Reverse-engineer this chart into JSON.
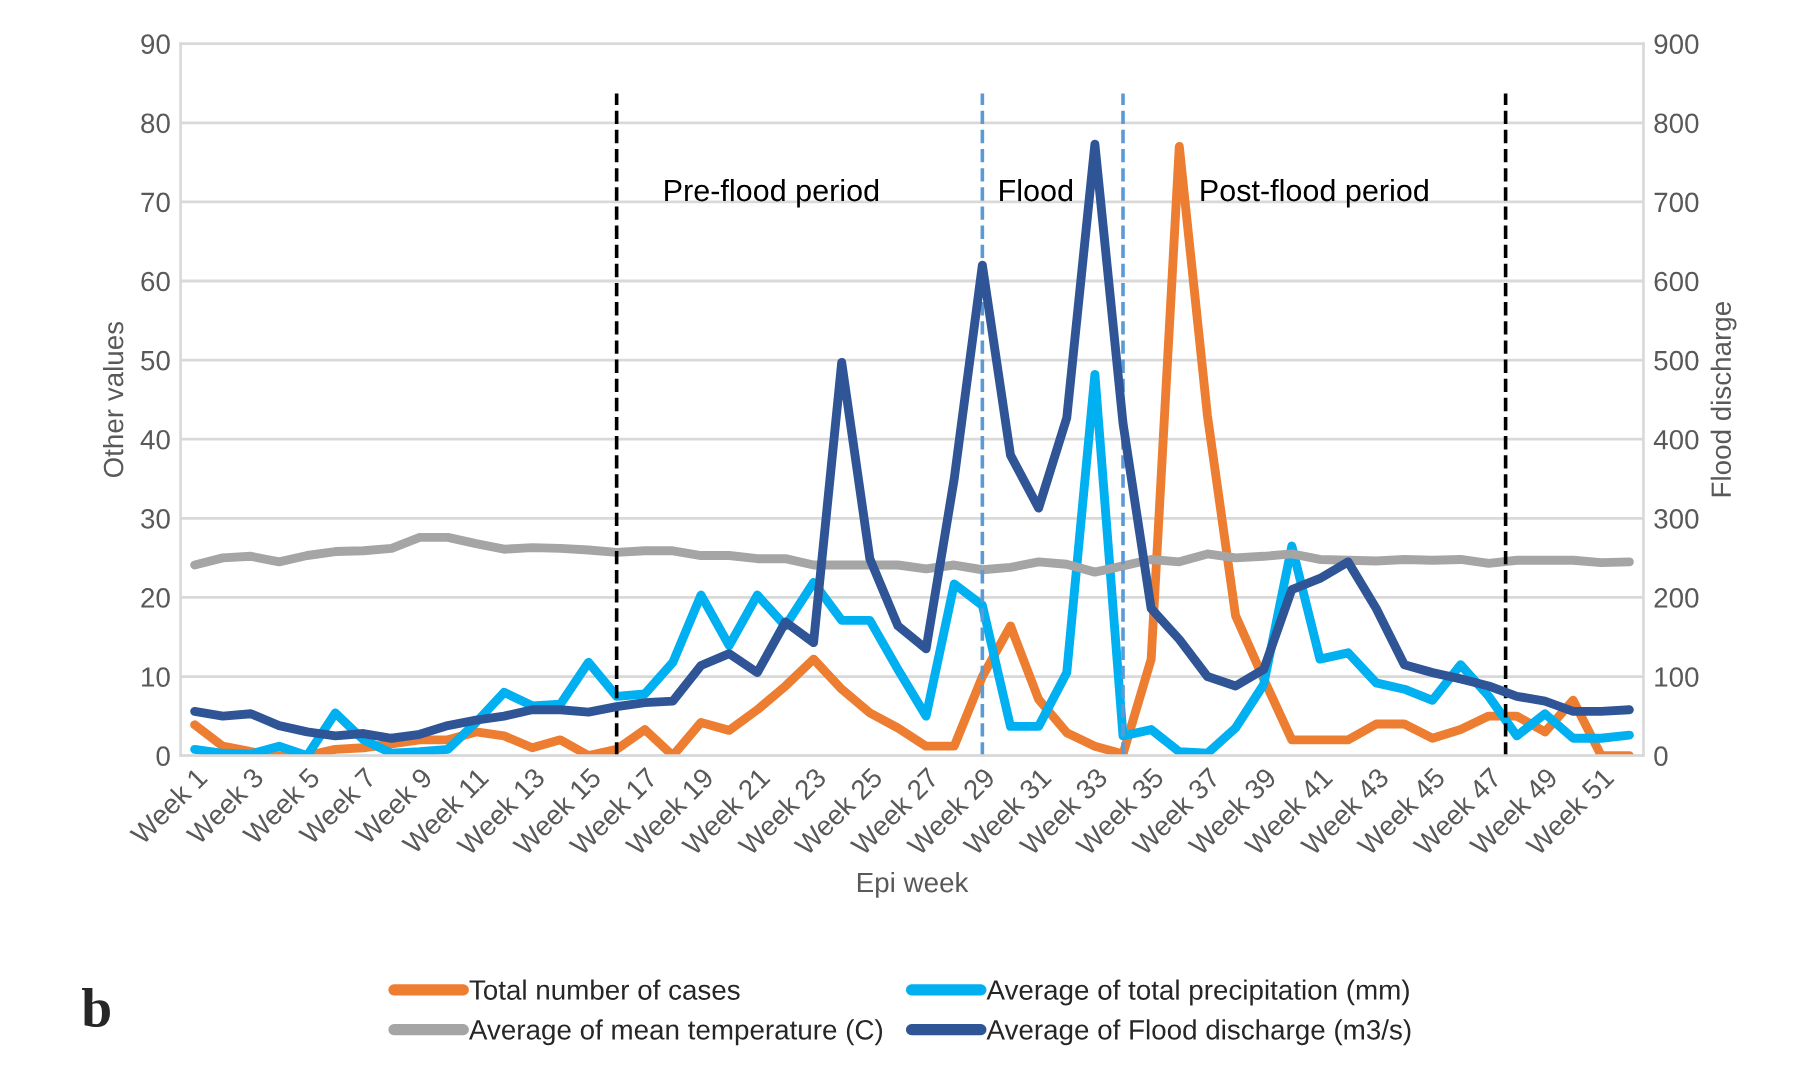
{
  "chart_data": {
    "type": "line",
    "xlabel": "Epi week",
    "ylabel": "Other values",
    "y2label": "Flood discharge",
    "categories": [
      "Week 1",
      null,
      "Week 3",
      null,
      "Week 5",
      null,
      "Week 7",
      null,
      "Week 9",
      null,
      "Week 11",
      null,
      "Week 13",
      null,
      "Week 15",
      null,
      "Week 17",
      null,
      "Week 19",
      null,
      "Week 21",
      null,
      "Week 23",
      null,
      "Week 25",
      null,
      "Week 27",
      null,
      "Week 29",
      null,
      "Week 31",
      null,
      "Week 33",
      null,
      "Week 35",
      null,
      "Week 37",
      null,
      "Week 39",
      null,
      "Week 41",
      null,
      "Week 43",
      null,
      "Week 45",
      null,
      "Week 47",
      null,
      "Week 49",
      null,
      "Week 51",
      null
    ],
    "ylim": [
      0,
      90
    ],
    "yticks": [
      0,
      10,
      20,
      30,
      40,
      50,
      60,
      70,
      80,
      90
    ],
    "y2lim": [
      0,
      900
    ],
    "y2ticks": [
      0,
      100,
      200,
      300,
      400,
      500,
      600,
      700,
      800,
      900
    ],
    "grid": "y",
    "legend": "bottom",
    "line_style": "solid",
    "marker": "none",
    "series": [
      {
        "name": "Total number of cases",
        "color": "#ed7d31",
        "values": [
          3.9,
          1.2,
          0.5,
          0,
          0,
          0.8,
          1,
          1.5,
          2,
          2,
          3,
          2.5,
          1,
          2,
          0,
          0.8,
          3.3,
          0,
          4.2,
          3.2,
          5.8,
          8.8,
          12.2,
          8.4,
          5.4,
          3.5,
          1.2,
          1.2,
          10,
          16.4,
          7.1,
          2.9,
          1.2,
          0.2,
          12.2,
          77,
          43,
          17.7,
          9.7,
          2,
          2,
          2,
          4,
          4,
          2.2,
          3.3,
          5,
          5,
          3,
          7,
          0,
          0
        ]
      },
      {
        "name": "Average of total precipitation (mm)",
        "color": "#00b0f0",
        "values": [
          0.8,
          0.3,
          0.2,
          1.2,
          0,
          5.4,
          2,
          0.3,
          0.5,
          0.8,
          4.2,
          8,
          6.3,
          6.5,
          11.8,
          7.5,
          7.8,
          11.8,
          20.3,
          13.9,
          20.3,
          16.4,
          21.9,
          17.1,
          17.1,
          10.9,
          5,
          21.7,
          19,
          3.7,
          3.7,
          10.5,
          48.2,
          2.5,
          3.3,
          0.5,
          0.3,
          3.5,
          9,
          26.5,
          12.2,
          13,
          9.2,
          8.4,
          7,
          11.5,
          7.5,
          2.5,
          5.3,
          2.2,
          2.2,
          2.6
        ]
      },
      {
        "name": "Average of mean temperature (C)",
        "color": "#a5a5a5",
        "values": [
          24.1,
          25,
          25.2,
          24.5,
          25.3,
          25.8,
          25.9,
          26.2,
          27.6,
          27.6,
          26.8,
          26.1,
          26.3,
          26.2,
          26,
          25.7,
          25.9,
          25.9,
          25.3,
          25.3,
          24.9,
          24.9,
          24.1,
          24.1,
          24.1,
          24.1,
          23.6,
          24.1,
          23.5,
          23.8,
          24.5,
          24.2,
          23.2,
          24,
          24.8,
          24.5,
          25.5,
          25,
          25.2,
          25.5,
          24.8,
          24.7,
          24.6,
          24.8,
          24.7,
          24.8,
          24.3,
          24.7,
          24.7,
          24.7,
          24.4,
          24.5
        ]
      },
      {
        "name": "Average of Flood discharge (m3/s)",
        "color": "#2f5597",
        "axis": "y2",
        "values": [
          56,
          50,
          53,
          38,
          30,
          25,
          28,
          22,
          27,
          38,
          45,
          50,
          58,
          58,
          55,
          62,
          67,
          69,
          114,
          129,
          105,
          169,
          143,
          497,
          249,
          164,
          135,
          350,
          620,
          380,
          313,
          427,
          773,
          420,
          186,
          147,
          100,
          88,
          109,
          210,
          224,
          245,
          186,
          115,
          105,
          97,
          88,
          75,
          69,
          56,
          56,
          58
        ]
      }
    ],
    "annotations": [
      "Pre-flood period",
      "Flood",
      "Post-flood period",
      "b"
    ]
  }
}
